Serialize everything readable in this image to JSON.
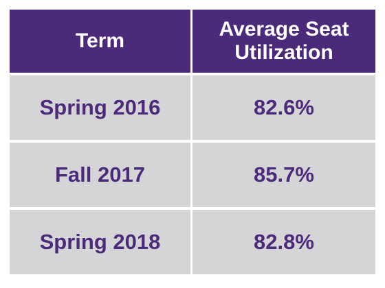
{
  "colors": {
    "header_background": "#4c2a7a",
    "header_text": "#ffffff",
    "row_background": "#d5d5d8",
    "row_text": "#4c2a7a"
  },
  "chart_data": {
    "type": "table",
    "columns": [
      "Term",
      "Average Seat Utilization"
    ],
    "rows": [
      [
        "Spring 2016",
        "82.6%"
      ],
      [
        "Fall 2017",
        "85.7%"
      ],
      [
        "Spring 2018",
        "82.8%"
      ]
    ],
    "values": [
      82.6,
      85.7,
      82.8
    ]
  }
}
